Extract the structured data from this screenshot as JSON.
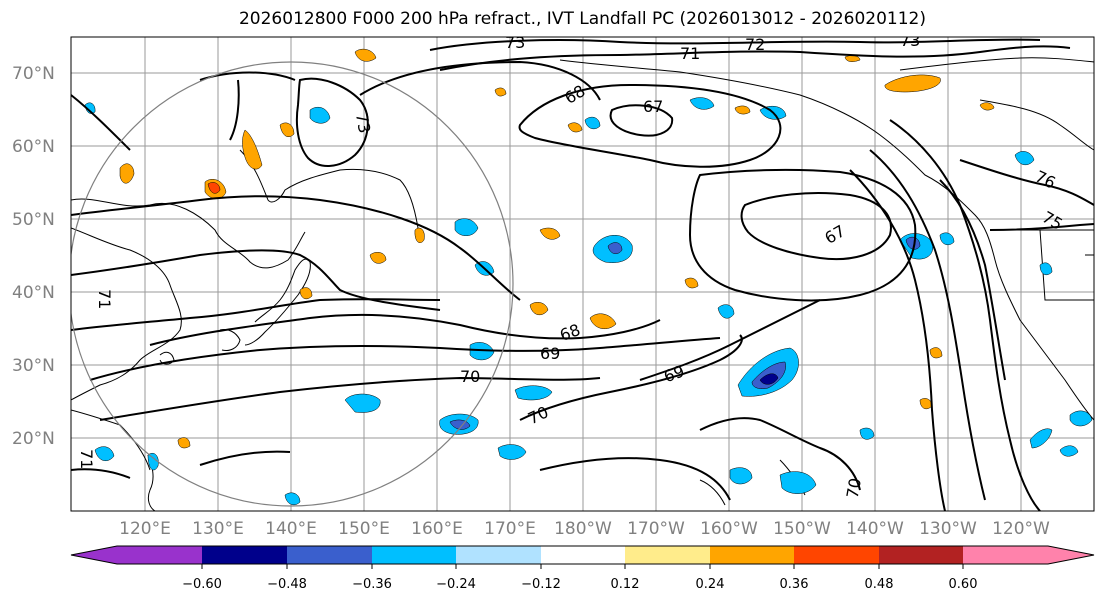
{
  "title": "2026012800 F000 200 hPa refract., IVT Landfall PC (2026013012 - 2026020112)",
  "lat_labels": [
    "70°N",
    "60°N",
    "50°N",
    "40°N",
    "30°N",
    "20°N"
  ],
  "lon_labels": [
    "120°E",
    "130°E",
    "140°E",
    "150°E",
    "160°E",
    "170°E",
    "180°W",
    "170°W",
    "160°W",
    "150°W",
    "140°W",
    "130°W",
    "120°W"
  ],
  "colorbar": {
    "tick_labels": [
      "−0.60",
      "−0.48",
      "−0.36",
      "−0.24",
      "−0.12",
      "0.12",
      "0.24",
      "0.36",
      "0.48",
      "0.60"
    ],
    "colors": [
      "#9932CC",
      "#00008B",
      "#3A5FCD",
      "#00BFFF",
      "#B0E2FF",
      "#FFFFFF",
      "#FFEC8B",
      "#FFA500",
      "#FF4500",
      "#B22222",
      "#FF82AB"
    ]
  },
  "contour_labels": [
    "73",
    "71",
    "72",
    "73",
    "67",
    "67",
    "73",
    "71",
    "71",
    "68",
    "69",
    "70",
    "70",
    "69",
    "70",
    "76",
    "75",
    "68"
  ]
}
